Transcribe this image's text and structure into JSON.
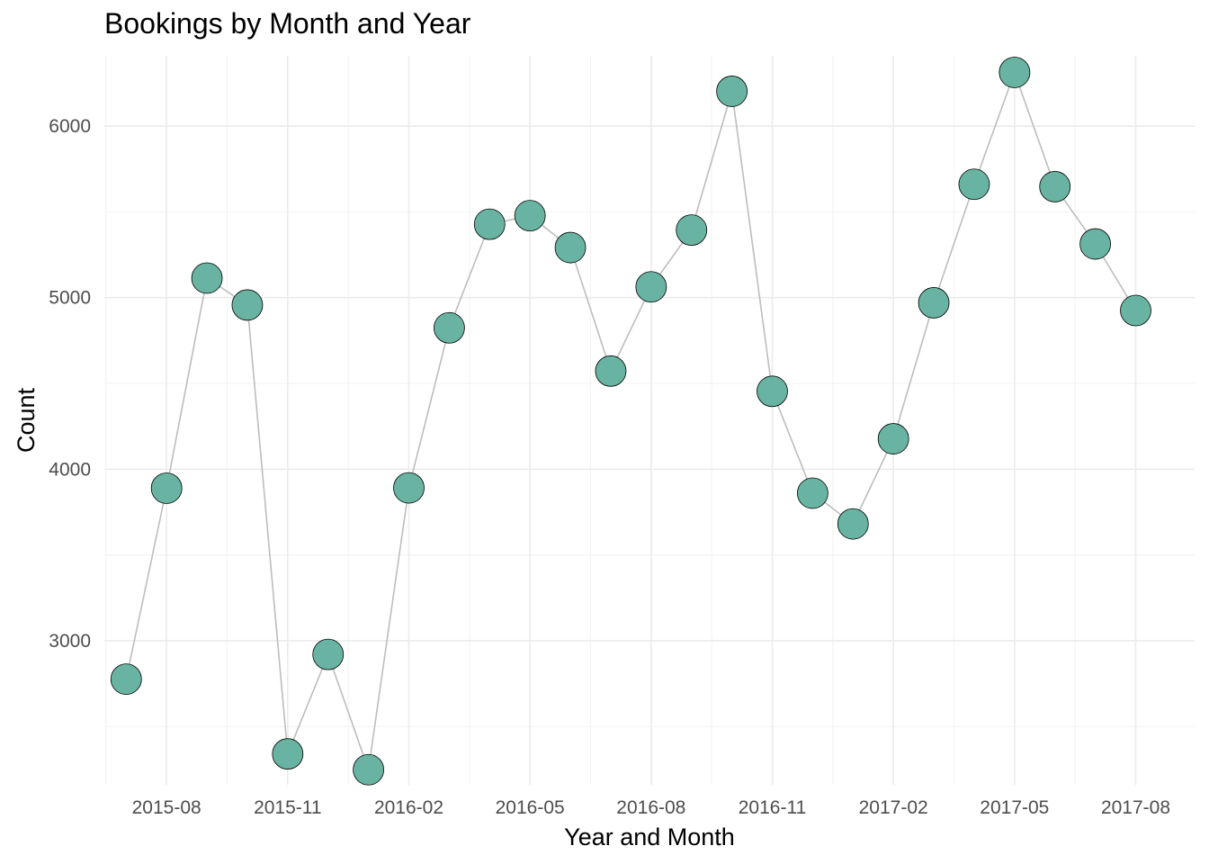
{
  "chart_data": {
    "type": "line",
    "title": "Bookings by Month and Year",
    "xlabel": "Year and Month",
    "ylabel": "Count",
    "x": [
      "2015-07",
      "2015-08",
      "2015-09",
      "2015-10",
      "2015-11",
      "2015-12",
      "2016-01",
      "2016-02",
      "2016-03",
      "2016-04",
      "2016-05",
      "2016-06",
      "2016-07",
      "2016-08",
      "2016-09",
      "2016-10",
      "2016-11",
      "2016-12",
      "2017-01",
      "2017-02",
      "2017-03",
      "2017-04",
      "2017-05",
      "2017-06",
      "2017-07",
      "2017-08"
    ],
    "values": [
      2776,
      3889,
      5114,
      4957,
      2340,
      2920,
      2248,
      3891,
      4824,
      5428,
      5478,
      5292,
      4572,
      5063,
      5394,
      6203,
      4454,
      3860,
      3681,
      4177,
      4970,
      5661,
      6313,
      5647,
      5313,
      4925
    ],
    "x_tick_labels": [
      "2015-08",
      "2015-11",
      "2016-02",
      "2016-05",
      "2016-08",
      "2016-11",
      "2017-02",
      "2017-05",
      "2017-08"
    ],
    "y_ticks": [
      3000,
      4000,
      5000,
      6000
    ],
    "ylim": [
      2160,
      6410
    ],
    "xlim": [
      "2015-06-15",
      "2017-09-15"
    ],
    "grid": true,
    "colors": {
      "point_fill": "#69b3a2",
      "point_stroke": "#000000",
      "line": "#bdbdbd",
      "grid_major": "#ebebeb",
      "grid_minor": "#f4f4f4",
      "tick_text": "#4d4d4d"
    }
  }
}
